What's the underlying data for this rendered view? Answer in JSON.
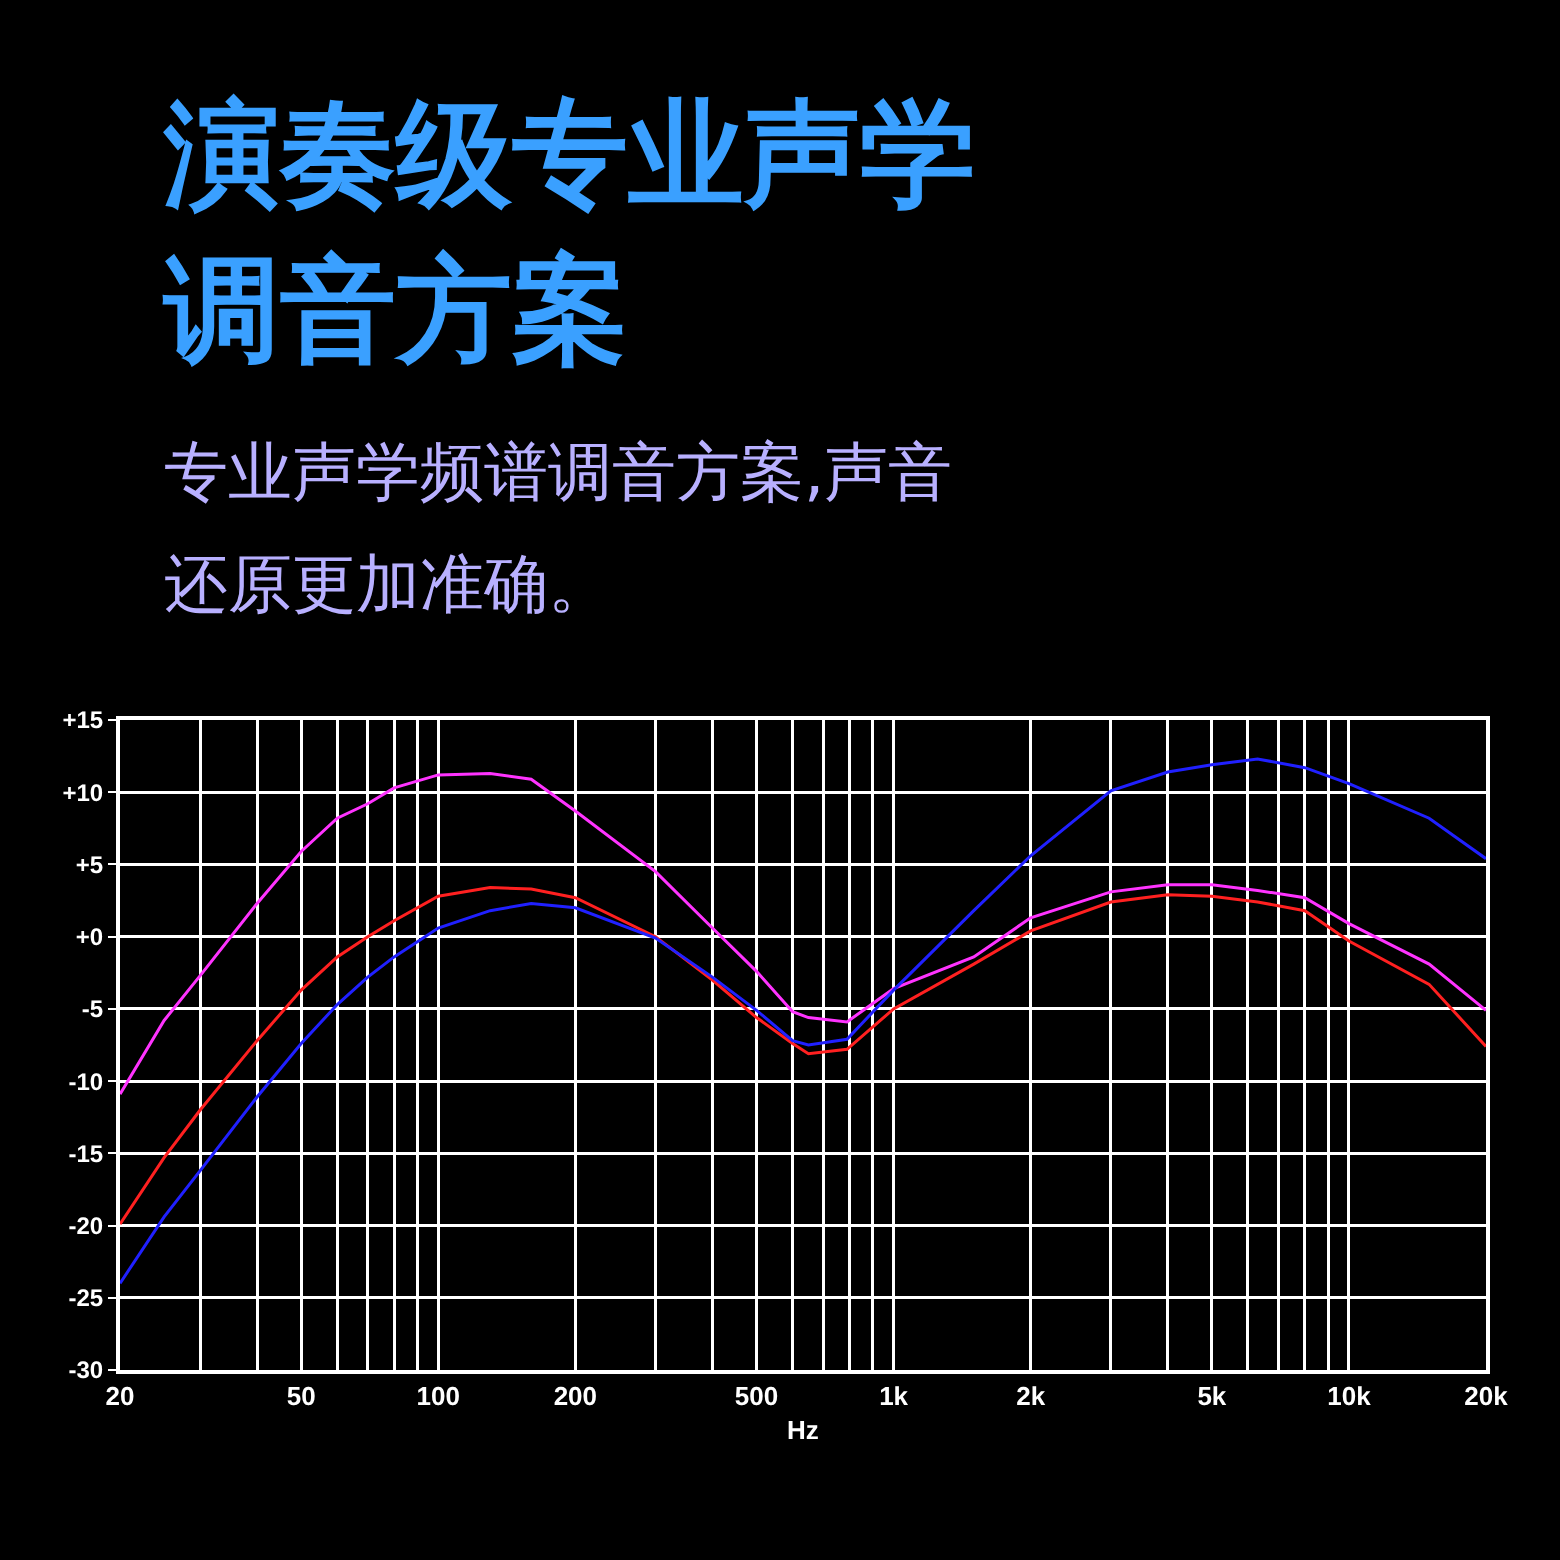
{
  "chart_data": {
    "type": "line",
    "title": "演奏级专业声学调音方案",
    "subtitle": "专业声学频谱调音方案,声音还原更加准确。",
    "xlabel": "Hz",
    "log": "x",
    "grid": true,
    "marker": "none",
    "line_style": "solid",
    "xlim": [
      20,
      20000
    ],
    "xticks": [
      20,
      {
        "value": 30,
        "label": null
      },
      {
        "value": 40,
        "label": null
      },
      50,
      {
        "value": 60,
        "label": null
      },
      {
        "value": 70,
        "label": null
      },
      {
        "value": 80,
        "label": null
      },
      {
        "value": 90,
        "label": null
      },
      100,
      200,
      {
        "value": 300,
        "label": null
      },
      {
        "value": 400,
        "label": null
      },
      500,
      {
        "value": 600,
        "label": null
      },
      {
        "value": 700,
        "label": null
      },
      {
        "value": 800,
        "label": null
      },
      {
        "value": 900,
        "label": null
      },
      {
        "value": 1000,
        "label": "1k"
      },
      {
        "value": 2000,
        "label": "2k"
      },
      {
        "value": 3000,
        "label": null
      },
      {
        "value": 4000,
        "label": null
      },
      {
        "value": 5000,
        "label": "5k"
      },
      {
        "value": 6000,
        "label": null
      },
      {
        "value": 7000,
        "label": null
      },
      {
        "value": 8000,
        "label": null
      },
      {
        "value": 9000,
        "label": null
      },
      {
        "value": 10000,
        "label": "10k"
      },
      {
        "value": 20000,
        "label": "20k"
      }
    ],
    "ylim": [
      -30,
      15
    ],
    "yticks": [
      {
        "value": 15,
        "label": "+15"
      },
      {
        "value": 10,
        "label": "+10"
      },
      {
        "value": 5,
        "label": "+5"
      },
      {
        "value": 0,
        "label": "+0"
      },
      -5,
      -10,
      -15,
      -20,
      -25,
      -30
    ],
    "x": [
      20,
      25,
      30,
      40,
      50,
      60,
      70,
      80,
      100,
      130,
      160,
      200,
      300,
      400,
      500,
      600,
      650,
      790,
      1000,
      1500,
      2000,
      3000,
      4000,
      5000,
      6300,
      8000,
      10000,
      15000,
      20000
    ],
    "series": [
      {
        "color": "#ff33ff",
        "values": [
          -10.9,
          -5.8,
          -2.7,
          2.3,
          5.9,
          8.2,
          9.2,
          10.3,
          11.2,
          11.3,
          10.9,
          8.7,
          4.5,
          0.6,
          -2.4,
          -5.2,
          -5.6,
          -5.9,
          -3.6,
          -1.4,
          1.3,
          3.1,
          3.6,
          3.6,
          3.2,
          2.7,
          0.9,
          -1.9,
          -5.1
        ]
      },
      {
        "color": "#ff2020",
        "values": [
          -19.9,
          -15.3,
          -12.0,
          -7.2,
          -3.7,
          -1.4,
          0.0,
          1.1,
          2.8,
          3.4,
          3.3,
          2.7,
          0.0,
          -3.0,
          -5.6,
          -7.4,
          -8.1,
          -7.8,
          -5.0,
          -1.9,
          0.4,
          2.4,
          2.9,
          2.8,
          2.4,
          1.8,
          -0.3,
          -3.3,
          -7.6
        ]
      },
      {
        "color": "#2020ff",
        "values": [
          -24.0,
          -19.4,
          -16.2,
          -11.1,
          -7.4,
          -4.7,
          -2.8,
          -1.4,
          0.6,
          1.8,
          2.3,
          2.0,
          -0.1,
          -2.8,
          -5.1,
          -7.2,
          -7.5,
          -7.1,
          -3.7,
          1.8,
          5.6,
          10.1,
          11.4,
          11.9,
          12.3,
          11.7,
          10.6,
          8.2,
          5.4
        ]
      }
    ]
  }
}
